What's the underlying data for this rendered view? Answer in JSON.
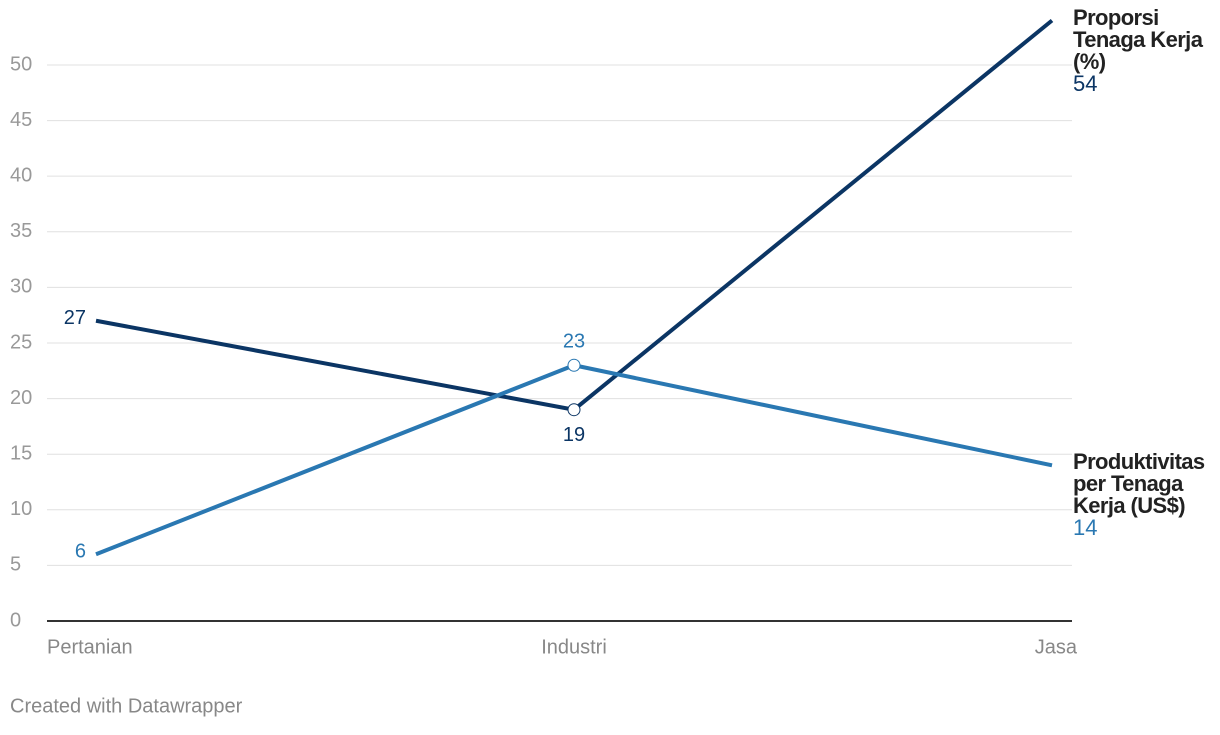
{
  "chart_data": {
    "type": "line",
    "categories": [
      "Pertanian",
      "Industri",
      "Jasa"
    ],
    "series": [
      {
        "name": "Proporsi Tenaga Kerja (%)",
        "color": "#0b3564",
        "values": [
          27,
          19,
          54
        ]
      },
      {
        "name": "Produktivitas per Tenaga Kerja (US$)",
        "color": "#2a78b2",
        "values": [
          6,
          23,
          14
        ]
      }
    ],
    "ylim": [
      0,
      54
    ],
    "yticks": [
      0,
      5,
      10,
      15,
      20,
      25,
      30,
      35,
      40,
      45,
      50
    ],
    "grid": true,
    "credit": "Created with Datawrapper"
  }
}
